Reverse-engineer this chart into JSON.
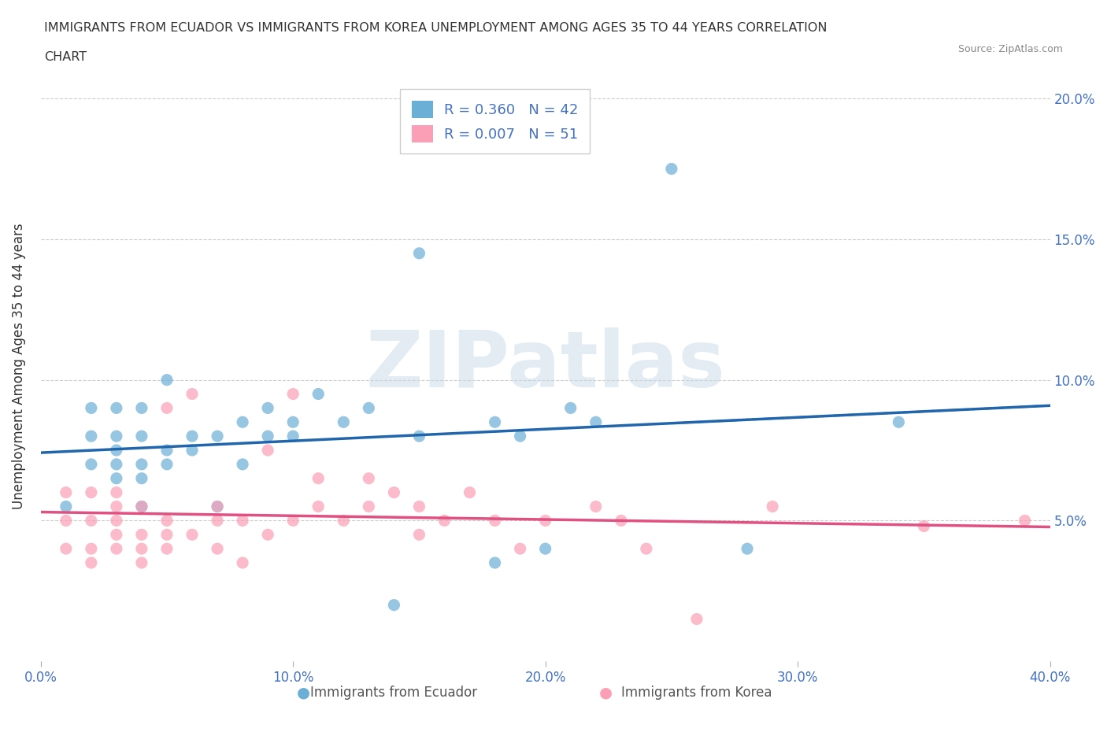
{
  "title_line1": "IMMIGRANTS FROM ECUADOR VS IMMIGRANTS FROM KOREA UNEMPLOYMENT AMONG AGES 35 TO 44 YEARS CORRELATION",
  "title_line2": "CHART",
  "source": "Source: ZipAtlas.com",
  "xlabel_bottom": [
    "0.0%",
    "10.0%",
    "20.0%",
    "30.0%",
    "40.0%"
  ],
  "ylabel_right": [
    "5.0%",
    "10.0%",
    "15.0%",
    "20.0%"
  ],
  "ylabel_label": "Unemployment Among Ages 35 to 44 years",
  "xlim": [
    0.0,
    0.4
  ],
  "ylim": [
    0.0,
    0.21
  ],
  "ecuador_R": 0.36,
  "ecuador_N": 42,
  "korea_R": 0.007,
  "korea_N": 51,
  "ecuador_color": "#6baed6",
  "korea_color": "#fa9fb5",
  "ecuador_trend_color": "#2166ac",
  "korea_trend_color": "#e05080",
  "watermark": "ZIPatlas",
  "watermark_color": "#c8d8e8",
  "legend_label1": "Immigrants from Ecuador",
  "legend_label2": "Immigrants from Korea",
  "ecuador_x": [
    0.01,
    0.02,
    0.02,
    0.02,
    0.03,
    0.03,
    0.03,
    0.03,
    0.03,
    0.04,
    0.04,
    0.04,
    0.04,
    0.04,
    0.05,
    0.05,
    0.05,
    0.06,
    0.06,
    0.07,
    0.07,
    0.08,
    0.08,
    0.09,
    0.09,
    0.1,
    0.1,
    0.11,
    0.12,
    0.13,
    0.14,
    0.15,
    0.15,
    0.18,
    0.18,
    0.19,
    0.2,
    0.21,
    0.22,
    0.25,
    0.28,
    0.34
  ],
  "ecuador_y": [
    0.055,
    0.07,
    0.08,
    0.09,
    0.065,
    0.07,
    0.075,
    0.08,
    0.09,
    0.055,
    0.065,
    0.07,
    0.08,
    0.09,
    0.07,
    0.075,
    0.1,
    0.075,
    0.08,
    0.055,
    0.08,
    0.07,
    0.085,
    0.08,
    0.09,
    0.08,
    0.085,
    0.095,
    0.085,
    0.09,
    0.02,
    0.145,
    0.08,
    0.035,
    0.085,
    0.08,
    0.04,
    0.09,
    0.085,
    0.175,
    0.04,
    0.085
  ],
  "korea_x": [
    0.01,
    0.01,
    0.01,
    0.02,
    0.02,
    0.02,
    0.02,
    0.03,
    0.03,
    0.03,
    0.03,
    0.03,
    0.04,
    0.04,
    0.04,
    0.04,
    0.05,
    0.05,
    0.05,
    0.05,
    0.06,
    0.06,
    0.07,
    0.07,
    0.07,
    0.08,
    0.08,
    0.09,
    0.09,
    0.1,
    0.1,
    0.11,
    0.11,
    0.12,
    0.13,
    0.13,
    0.14,
    0.15,
    0.15,
    0.16,
    0.17,
    0.18,
    0.19,
    0.2,
    0.22,
    0.23,
    0.24,
    0.26,
    0.29,
    0.35,
    0.39
  ],
  "korea_y": [
    0.04,
    0.05,
    0.06,
    0.035,
    0.04,
    0.05,
    0.06,
    0.04,
    0.045,
    0.05,
    0.055,
    0.06,
    0.035,
    0.04,
    0.045,
    0.055,
    0.04,
    0.045,
    0.05,
    0.09,
    0.045,
    0.095,
    0.04,
    0.05,
    0.055,
    0.035,
    0.05,
    0.045,
    0.075,
    0.05,
    0.095,
    0.055,
    0.065,
    0.05,
    0.055,
    0.065,
    0.06,
    0.045,
    0.055,
    0.05,
    0.06,
    0.05,
    0.04,
    0.05,
    0.055,
    0.05,
    0.04,
    0.015,
    0.055,
    0.048,
    0.05
  ]
}
